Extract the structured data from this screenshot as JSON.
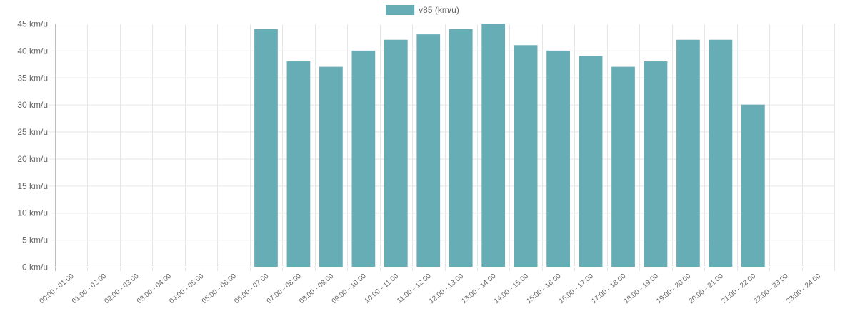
{
  "chart_data": {
    "type": "bar",
    "categories": [
      "00:00 - 01:00",
      "01:00 - 02:00",
      "02:00 - 03:00",
      "03:00 - 04:00",
      "04:00 - 05:00",
      "05:00 - 06:00",
      "06:00 - 07:00",
      "07:00 - 08:00",
      "08:00 - 09:00",
      "09:00 - 10:00",
      "10:00 - 11:00",
      "11:00 - 12:00",
      "12:00 - 13:00",
      "13:00 - 14:00",
      "14:00 - 15:00",
      "15:00 - 16:00",
      "16:00 - 17:00",
      "17:00 - 18:00",
      "18:00 - 19:00",
      "19:00 - 20:00",
      "20:00 - 21:00",
      "21:00 - 22:00",
      "22:00 - 23:00",
      "23:00 - 24:00"
    ],
    "series": [
      {
        "name": "v85 (km/u)",
        "color": "#67adb6",
        "values": [
          null,
          null,
          null,
          null,
          null,
          null,
          44,
          38,
          37,
          40,
          42,
          43,
          44,
          45,
          41,
          40,
          39,
          37,
          38,
          42,
          42,
          30,
          null,
          null
        ]
      }
    ],
    "y_ticks": [
      "0 km/u",
      "5 km/u",
      "10 km/u",
      "15 km/u",
      "20 km/u",
      "25 km/u",
      "30 km/u",
      "35 km/u",
      "40 km/u",
      "45 km/u"
    ],
    "ylim": [
      0,
      45
    ],
    "y_step": 5,
    "grid": true,
    "legend_position": "top-center",
    "title": "",
    "xlabel": "",
    "ylabel": ""
  }
}
